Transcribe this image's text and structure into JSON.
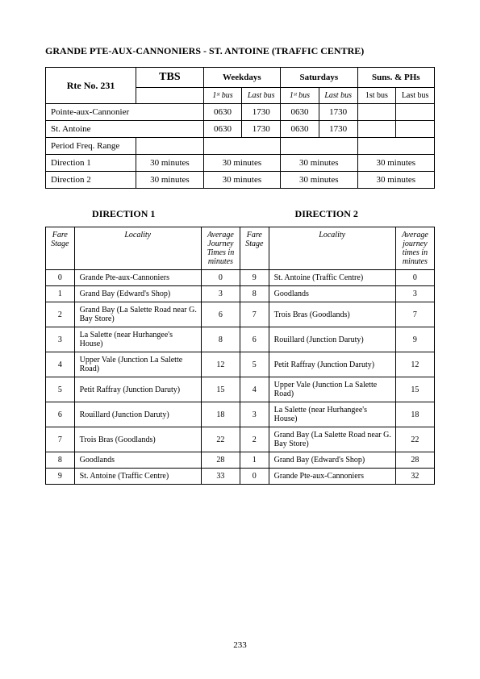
{
  "title": "GRANDE PTE-AUX-CANNONIERS - ST. ANTOINE (TRAFFIC CENTRE)",
  "route_label": "Rte No. 231",
  "tbs": "TBS",
  "day_headers": [
    "Weekdays",
    "Saturdays",
    "Suns. & PHs"
  ],
  "bus_headers_italic": [
    "1ˢᵗ bus",
    "Last bus",
    "1ˢᵗ bus",
    "Last bus"
  ],
  "bus_headers_plain": [
    "1st bus",
    "Last bus"
  ],
  "terminals": [
    {
      "name": "Pointe-aux-Cannonier",
      "times": [
        "0630",
        "1730",
        "0630",
        "1730",
        "",
        ""
      ]
    },
    {
      "name": "St. Antoine",
      "times": [
        "0630",
        "1730",
        "0630",
        "1730",
        "",
        ""
      ]
    }
  ],
  "period_label": "Period Freq. Range",
  "dir1_label": "Direction 1",
  "dir2_label": "Direction 2",
  "freq": {
    "d1": [
      "30 minutes",
      "30 minutes",
      "30 minutes",
      "30 minutes"
    ],
    "d2": [
      "30 minutes",
      "30 minutes",
      "30 minutes",
      "30 minutes"
    ]
  },
  "dir_heading_1": "DIRECTION 1",
  "dir_heading_2": "DIRECTION 2",
  "loc_headers": {
    "stage": "Fare Stage",
    "locality": "Locality",
    "avg1": "Average Journey Times in minutes",
    "avg2": "Average journey times in minutes"
  },
  "rows": [
    {
      "s1": "0",
      "n1": "Grande Pte-aux-Cannoniers",
      "a1": "0",
      "s2": "9",
      "n2": "St. Antoine (Traffic Centre)",
      "a2": "0"
    },
    {
      "s1": "1",
      "n1": "Grand Bay (Edward's Shop)",
      "a1": "3",
      "s2": "8",
      "n2": "Goodlands",
      "a2": "3"
    },
    {
      "s1": "2",
      "n1": "Grand Bay (La Salette Road near G. Bay Store)",
      "a1": "6",
      "s2": "7",
      "n2": "Trois Bras (Goodlands)",
      "a2": "7"
    },
    {
      "s1": "3",
      "n1": "La Salette (near Hurhangee's House)",
      "a1": "8",
      "s2": "6",
      "n2": "Rouillard (Junction Daruty)",
      "a2": "9"
    },
    {
      "s1": "4",
      "n1": "Upper Vale (Junction La Salette Road)",
      "a1": "12",
      "s2": "5",
      "n2": "Petit Raffray (Junction Daruty)",
      "a2": "12"
    },
    {
      "s1": "5",
      "n1": "Petit Raffray (Junction Daruty)",
      "a1": "15",
      "s2": "4",
      "n2": "Upper Vale (Junction La Salette Road)",
      "a2": "15"
    },
    {
      "s1": "6",
      "n1": "Rouillard (Junction Daruty)",
      "a1": "18",
      "s2": "3",
      "n2": "La Salette (near Hurhangee's House)",
      "a2": "18"
    },
    {
      "s1": "7",
      "n1": "Trois Bras (Goodlands)",
      "a1": "22",
      "s2": "2",
      "n2": "Grand Bay (La Salette Road near G. Bay Store)",
      "a2": "22"
    },
    {
      "s1": "8",
      "n1": "Goodlands",
      "a1": "28",
      "s2": "1",
      "n2": "Grand Bay (Edward's Shop)",
      "a2": "28"
    },
    {
      "s1": "9",
      "n1": "St. Antoine (Traffic Centre)",
      "a1": "33",
      "s2": "0",
      "n2": "Grande Pte-aux-Cannoniers",
      "a2": "32"
    }
  ],
  "page_number": "233"
}
